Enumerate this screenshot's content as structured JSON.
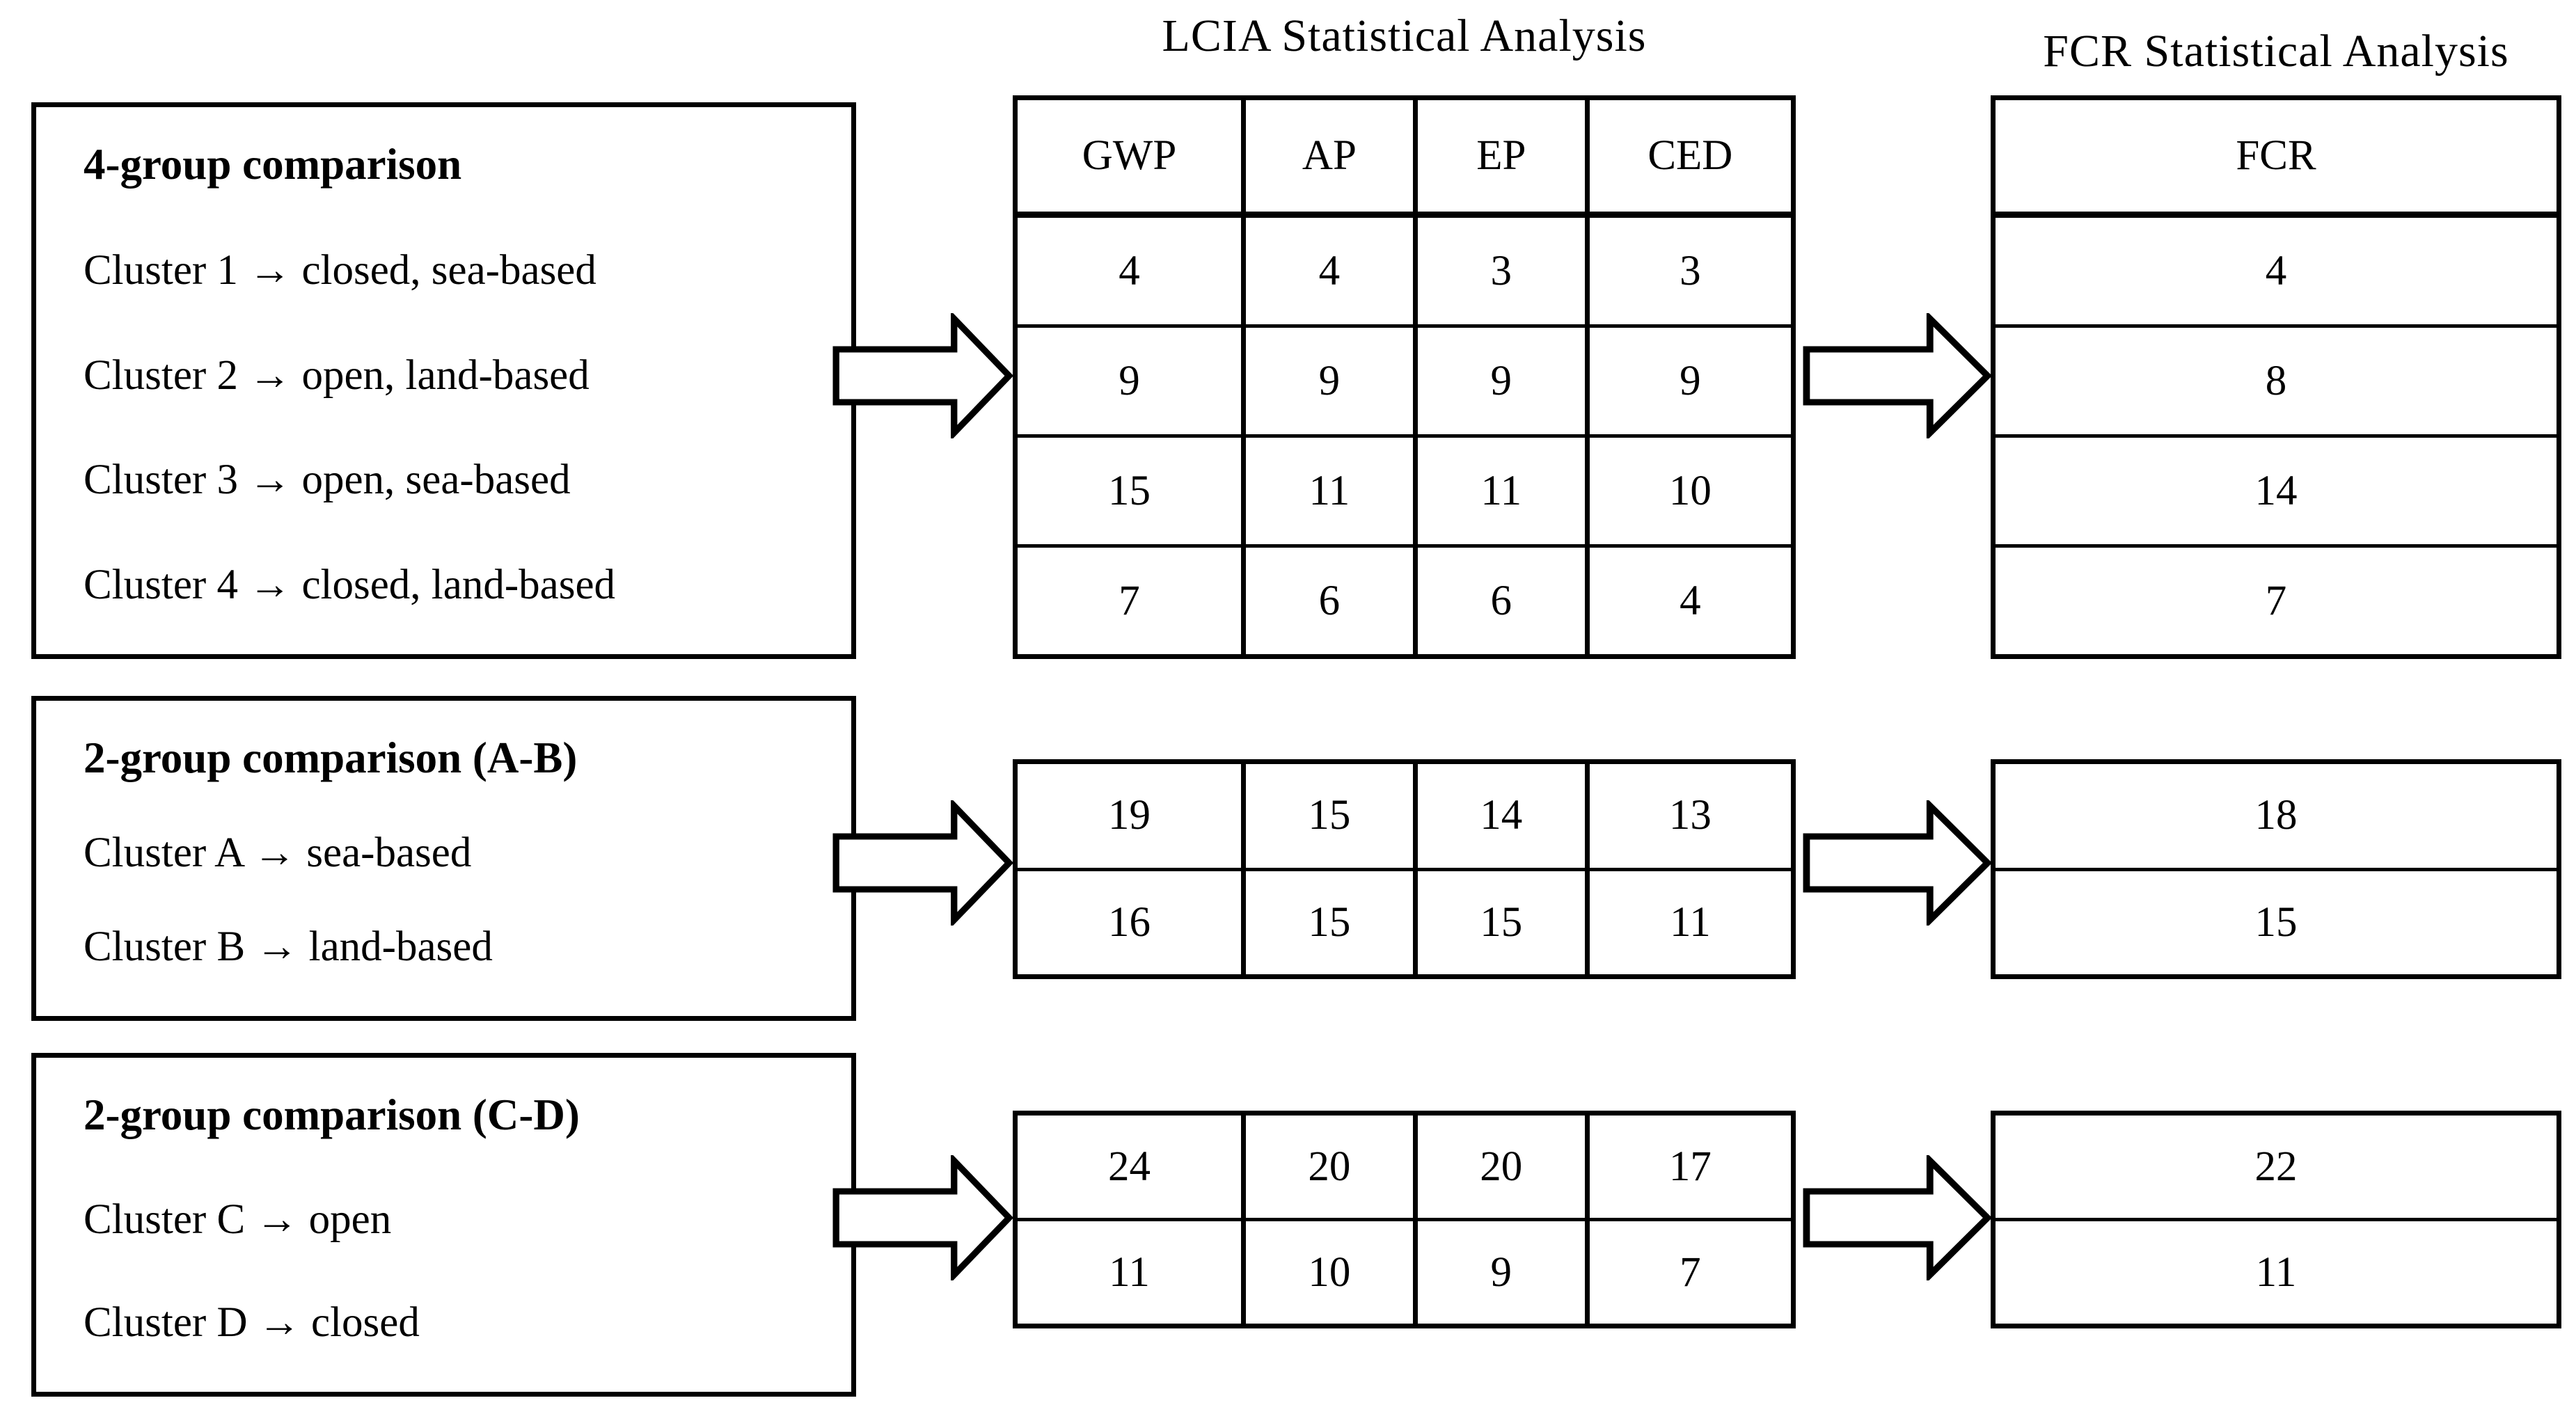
{
  "titles": {
    "lcia": "LCIA Statistical Analysis",
    "fcr": "FCR Statistical Analysis"
  },
  "lcia_header": [
    "GWP",
    "AP",
    "EP",
    "CED"
  ],
  "fcr_header": "FCR",
  "groups": [
    {
      "label": "4-group comparison",
      "clusters": [
        "Cluster 1 → closed, sea-based",
        "Cluster 2 → open, land-based",
        "Cluster 3 → open, sea-based",
        "Cluster 4 → closed, land-based"
      ],
      "has_header": true,
      "lcia_rows": [
        [
          "4",
          "4",
          "3",
          "3"
        ],
        [
          "9",
          "9",
          "9",
          "9"
        ],
        [
          "15",
          "11",
          "11",
          "10"
        ],
        [
          "7",
          "6",
          "6",
          "4"
        ]
      ],
      "fcr_rows": [
        "4",
        "8",
        "14",
        "7"
      ]
    },
    {
      "label": "2-group comparison (A-B)",
      "clusters": [
        "Cluster A → sea-based",
        "Cluster B → land-based"
      ],
      "has_header": false,
      "lcia_rows": [
        [
          "19",
          "15",
          "14",
          "13"
        ],
        [
          "16",
          "15",
          "15",
          "11"
        ]
      ],
      "fcr_rows": [
        "18",
        "15"
      ]
    },
    {
      "label": "2-group comparison (C-D)",
      "clusters": [
        "Cluster C → open",
        "Cluster D → closed"
      ],
      "has_header": false,
      "lcia_rows": [
        [
          "24",
          "20",
          "20",
          "17"
        ],
        [
          "11",
          "10",
          "9",
          "7"
        ]
      ],
      "fcr_rows": [
        "22",
        "11"
      ]
    }
  ]
}
